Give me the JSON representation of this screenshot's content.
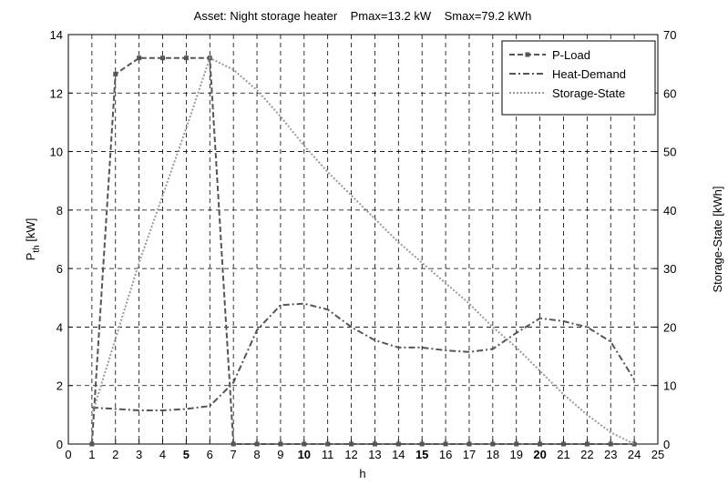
{
  "chart_data": {
    "type": "line",
    "title": "Asset: Night storage heater    Pmax=13.2 kW    Smax=79.2 kWh",
    "xlabel": "h",
    "ylabel": {
      "main": "P",
      "sub": "th",
      "unit": " [kW]"
    },
    "y2label": "Storage-State [kWh]",
    "x": [
      1,
      2,
      3,
      4,
      5,
      6,
      7,
      8,
      9,
      10,
      11,
      12,
      13,
      14,
      15,
      16,
      17,
      18,
      19,
      20,
      21,
      22,
      23,
      24
    ],
    "series": [
      {
        "name": "P-Load",
        "color": "#555555",
        "dash": "6,3",
        "marker": "square",
        "values": [
          0,
          12.65,
          13.2,
          13.2,
          13.2,
          13.2,
          0,
          0,
          0,
          0,
          0,
          0,
          0,
          0,
          0,
          0,
          0,
          0,
          0,
          0,
          0,
          0,
          0,
          0
        ]
      },
      {
        "name": "Heat-Demand",
        "color": "#555555",
        "dash": "7,3,2,3",
        "values": [
          1.25,
          1.2,
          1.15,
          1.15,
          1.2,
          1.3,
          2.1,
          3.9,
          4.75,
          4.8,
          4.6,
          4.0,
          3.55,
          3.3,
          3.3,
          3.2,
          3.15,
          3.25,
          3.8,
          4.3,
          4.2,
          4.0,
          3.5,
          2.2
        ]
      },
      {
        "name": "Storage-State",
        "color": "#999999",
        "dash": "2,2",
        "axis": "y2",
        "values": [
          5,
          18,
          31,
          42.5,
          54,
          66,
          64,
          60.5,
          56,
          51,
          46.5,
          42.5,
          38.5,
          34.5,
          31,
          27.5,
          24,
          20,
          16.5,
          12.5,
          8.5,
          5,
          2,
          0
        ]
      }
    ],
    "xlim": [
      0,
      25
    ],
    "xticks": [
      0,
      1,
      2,
      3,
      4,
      5,
      6,
      7,
      8,
      9,
      10,
      11,
      12,
      13,
      14,
      15,
      16,
      17,
      18,
      19,
      20,
      21,
      22,
      23,
      24,
      25
    ],
    "ylim": [
      0,
      14
    ],
    "yticks": [
      0,
      2,
      4,
      6,
      8,
      10,
      12,
      14
    ],
    "y2lim": [
      0,
      70
    ],
    "y2ticks": [
      0,
      10,
      20,
      30,
      40,
      50,
      60,
      70
    ],
    "grid": true,
    "legend": "upper right"
  }
}
